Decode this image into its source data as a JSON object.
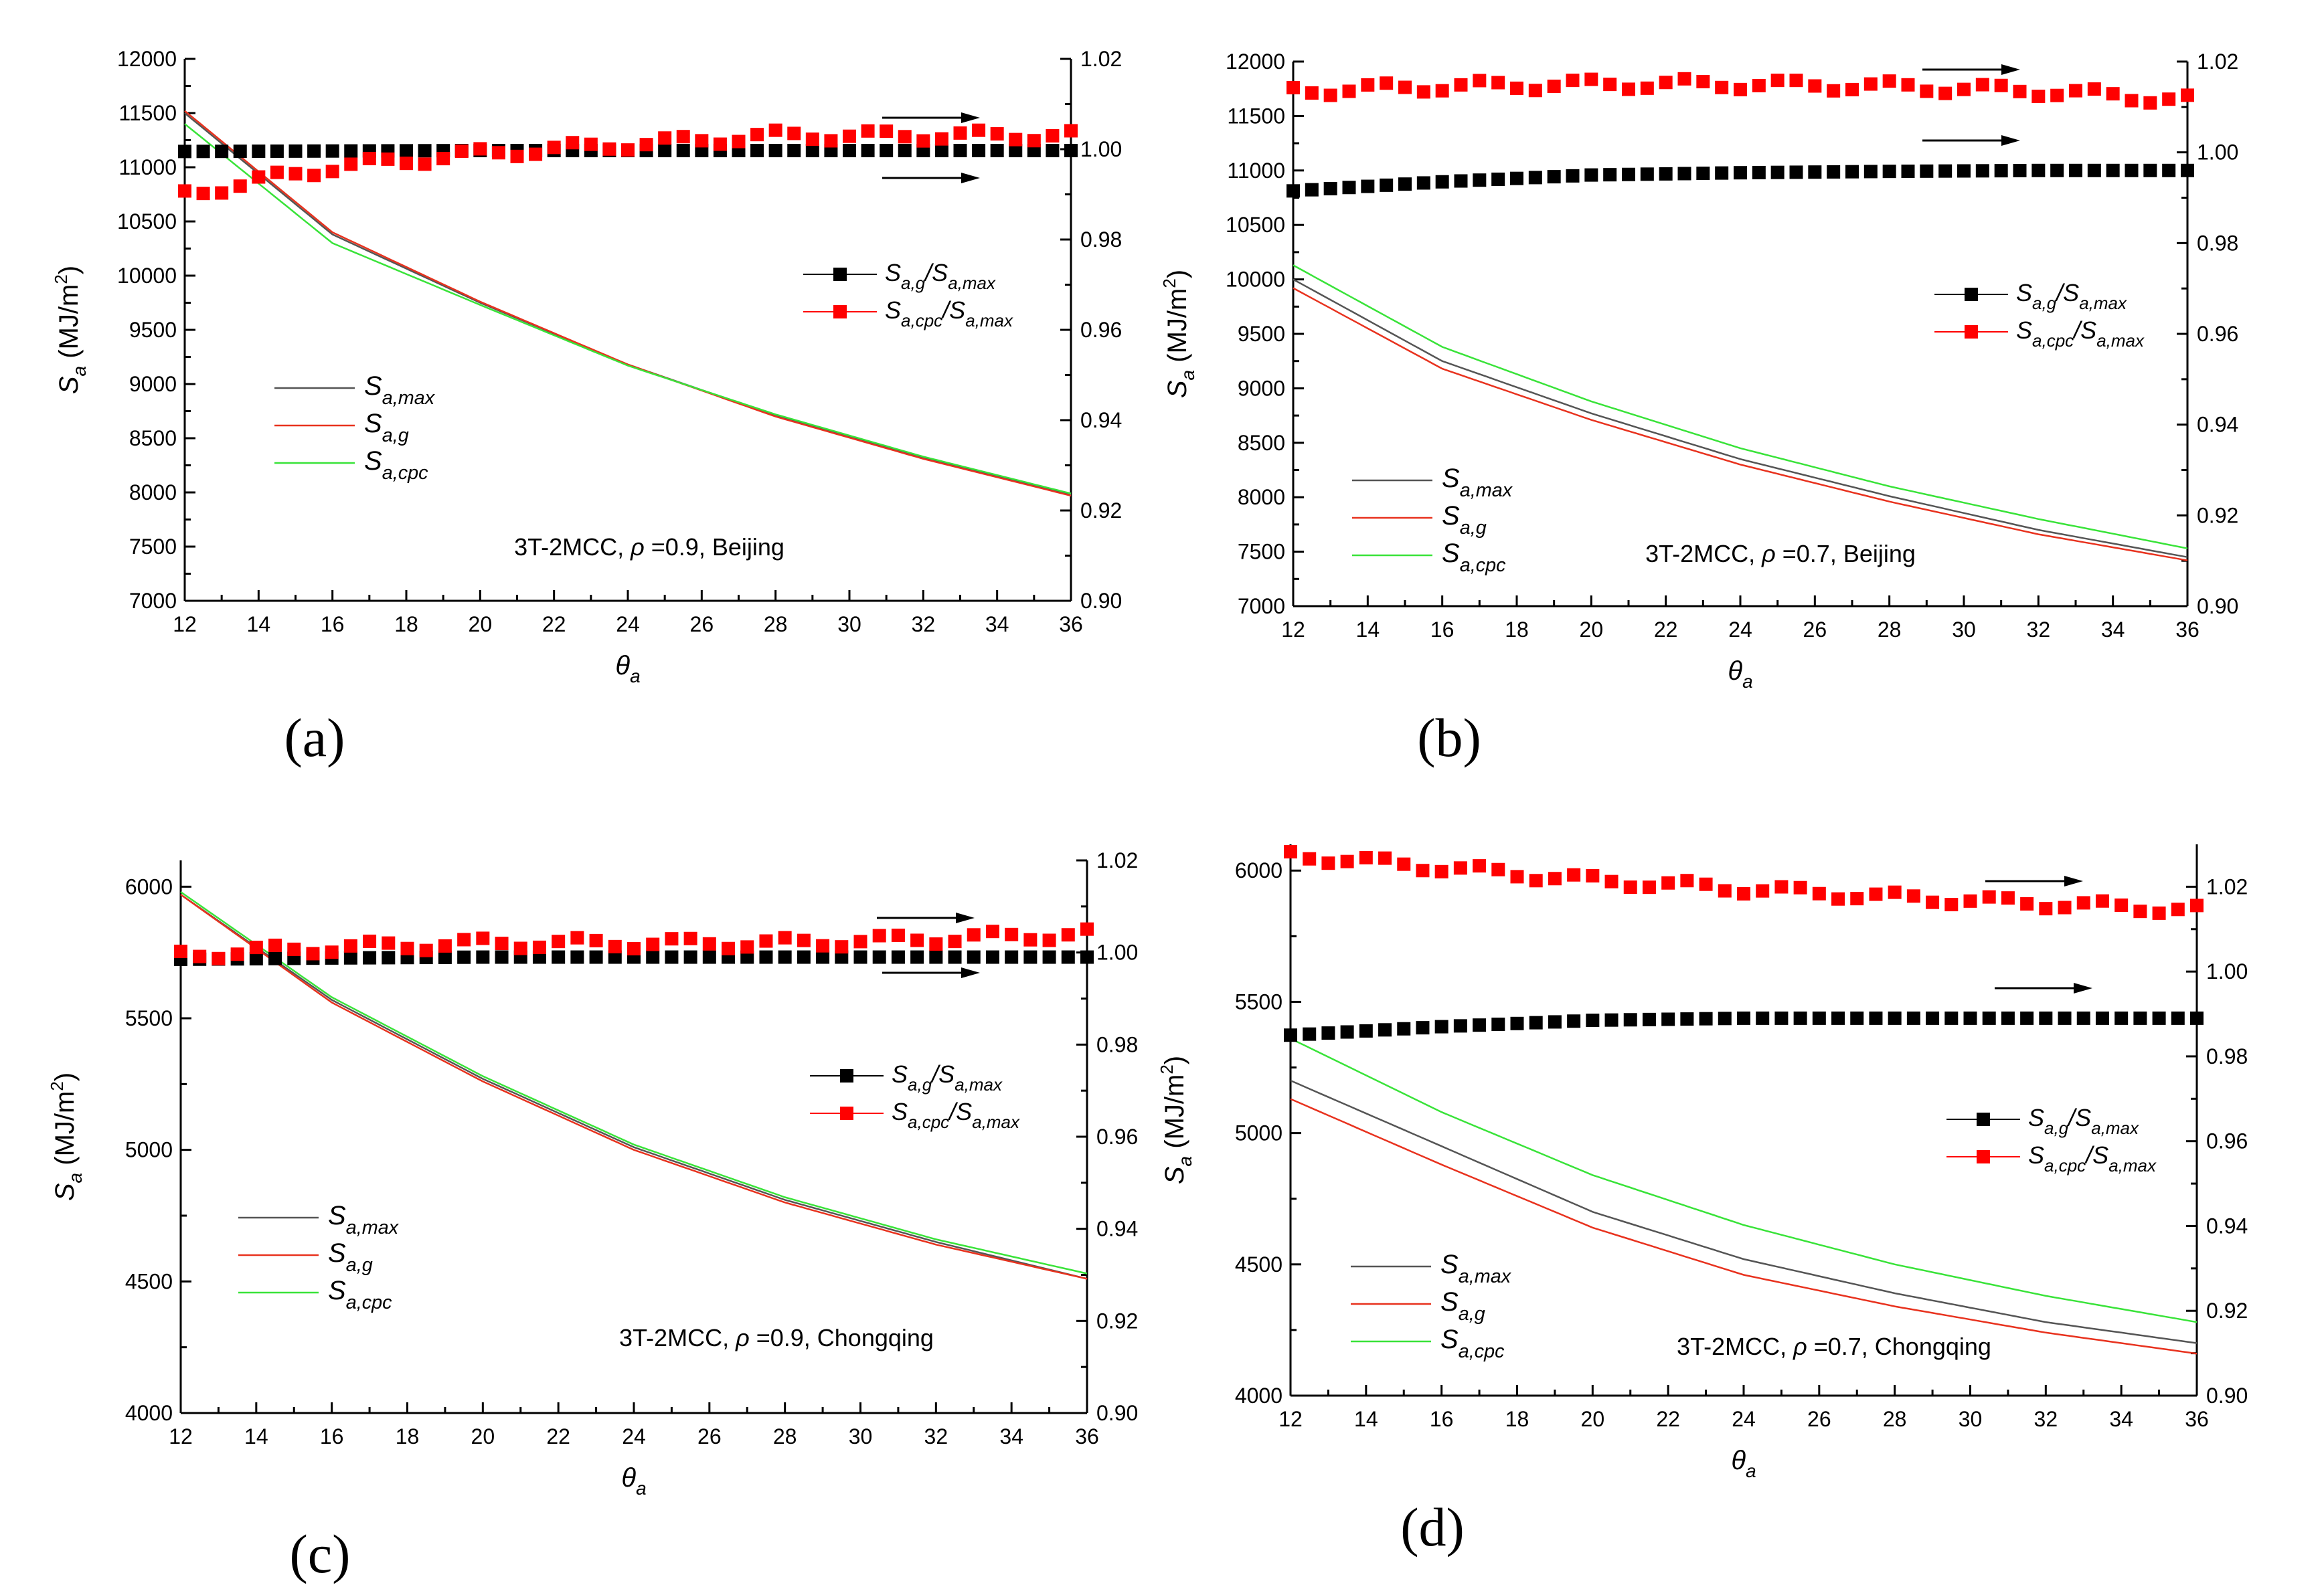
{
  "colors": {
    "series_max": "#555555",
    "series_g": "#e8321e",
    "series_cpc": "#39e339",
    "ratio_g": "#000000",
    "ratio_cpc": "#ff0000"
  },
  "chart_data": [
    {
      "type": "line",
      "panel_label": "(a)",
      "annotation": "3T-2MCC, ρ =0.9, Beijing",
      "xlabel": "θa",
      "ylabel": "Sa (MJ/m2)",
      "ylabel_right": "",
      "xlim": [
        12,
        36
      ],
      "ylim": [
        7000,
        12000
      ],
      "ylim_right": [
        0.9,
        1.02
      ],
      "xticks": [
        "12",
        "14",
        "16",
        "18",
        "20",
        "22",
        "24",
        "26",
        "28",
        "30",
        "32",
        "34",
        "36"
      ],
      "yticks": [
        "7000",
        "7500",
        "8000",
        "8500",
        "9000",
        "9500",
        "10000",
        "10500",
        "11000",
        "11500",
        "12000"
      ],
      "yticks_right": [
        "0.90",
        "0.92",
        "0.94",
        "0.96",
        "0.98",
        "1.00",
        "1.02"
      ],
      "legend_lines": [
        {
          "base": "S",
          "sub": "a,max"
        },
        {
          "base": "S",
          "sub": "a,g"
        },
        {
          "base": "S",
          "sub": "a,cpc"
        }
      ],
      "legend_ratios": [
        {
          "base": "S",
          "sub": "a,g",
          "base2": "S",
          "sub2": "a,max"
        },
        {
          "base": "S",
          "sub": "a,cpc",
          "base2": "S",
          "sub2": "a,max"
        }
      ],
      "x": [
        12,
        16,
        20,
        24,
        28,
        32,
        36
      ],
      "series": [
        {
          "name": "Sa,max",
          "axis": "left",
          "values": [
            11500,
            10380,
            9750,
            9180,
            8710,
            8320,
            7980
          ]
        },
        {
          "name": "Sa,g",
          "axis": "left",
          "values": [
            11520,
            10400,
            9760,
            9180,
            8700,
            8310,
            7970
          ]
        },
        {
          "name": "Sa,cpc",
          "axis": "left",
          "values": [
            11400,
            10300,
            9730,
            9170,
            8720,
            8330,
            7990
          ]
        },
        {
          "name": "Sa,g/Sa,max",
          "axis": "right",
          "values": [
            0.9995,
            0.9996,
            0.9997,
            0.9997,
            0.9997,
            0.9997,
            0.9997
          ]
        },
        {
          "name": "Sa,cpc/Sa,max",
          "axis": "right",
          "values": [
            0.99,
            0.996,
            0.999,
            1.001,
            1.003,
            1.003,
            1.003
          ]
        }
      ]
    },
    {
      "type": "line",
      "panel_label": "(b)",
      "annotation": "3T-2MCC, ρ =0.7, Beijing",
      "xlabel": "θa",
      "ylabel": "Sa (MJ/m2)",
      "ylabel_right": "",
      "xlim": [
        12,
        36
      ],
      "ylim": [
        7000,
        12000
      ],
      "ylim_right": [
        0.9,
        1.02
      ],
      "xticks": [
        "12",
        "14",
        "16",
        "18",
        "20",
        "22",
        "24",
        "26",
        "28",
        "30",
        "32",
        "34",
        "36"
      ],
      "yticks": [
        "7000",
        "7500",
        "8000",
        "8500",
        "9000",
        "9500",
        "10000",
        "10500",
        "11000",
        "11500",
        "12000"
      ],
      "yticks_right": [
        "0.90",
        "0.92",
        "0.94",
        "0.96",
        "0.98",
        "1.00",
        "1.02"
      ],
      "legend_lines": [
        {
          "base": "S",
          "sub": "a,max"
        },
        {
          "base": "S",
          "sub": "a,g"
        },
        {
          "base": "S",
          "sub": "a,cpc"
        }
      ],
      "legend_ratios": [
        {
          "base": "S",
          "sub": "a,g",
          "base2": "S",
          "sub2": "a,max"
        },
        {
          "base": "S",
          "sub": "a,cpc",
          "base2": "S",
          "sub2": "a,max"
        }
      ],
      "x": [
        12,
        16,
        20,
        24,
        28,
        32,
        36
      ],
      "series": [
        {
          "name": "Sa,max",
          "axis": "left",
          "values": [
            10000,
            9250,
            8770,
            8350,
            8010,
            7700,
            7450
          ]
        },
        {
          "name": "Sa,g",
          "axis": "left",
          "values": [
            9920,
            9180,
            8710,
            8300,
            7960,
            7660,
            7420
          ]
        },
        {
          "name": "Sa,cpc",
          "axis": "left",
          "values": [
            10130,
            9380,
            8880,
            8450,
            8100,
            7800,
            7530
          ]
        },
        {
          "name": "Sa,g/Sa,max",
          "axis": "right",
          "values": [
            0.9915,
            0.9935,
            0.995,
            0.9955,
            0.9958,
            0.996,
            0.996
          ]
        },
        {
          "name": "Sa,cpc/Sa,max",
          "axis": "right",
          "values": [
            1.0135,
            1.0145,
            1.015,
            1.015,
            1.0145,
            1.0135,
            1.0115
          ]
        }
      ]
    },
    {
      "type": "line",
      "panel_label": "(c)",
      "annotation": "3T-2MCC, ρ =0.9, Chongqing",
      "xlabel": "θa",
      "ylabel": "Sa (MJ/m2)",
      "ylabel_right": "",
      "xlim": [
        12,
        36
      ],
      "ylim": [
        4000,
        6100
      ],
      "ylim_right": [
        0.9,
        1.02
      ],
      "xticks": [
        "12",
        "14",
        "16",
        "18",
        "20",
        "22",
        "24",
        "26",
        "28",
        "30",
        "32",
        "34",
        "36"
      ],
      "yticks": [
        "4000",
        "4500",
        "5000",
        "5500",
        "6000"
      ],
      "yticks_right": [
        "0.90",
        "0.92",
        "0.94",
        "0.96",
        "0.98",
        "1.00",
        "1.02"
      ],
      "legend_lines": [
        {
          "base": "S",
          "sub": "a,max"
        },
        {
          "base": "S",
          "sub": "a,g"
        },
        {
          "base": "S",
          "sub": "a,cpc"
        }
      ],
      "legend_ratios": [
        {
          "base": "S",
          "sub": "a,g",
          "base2": "S",
          "sub2": "a,max"
        },
        {
          "base": "S",
          "sub": "a,cpc",
          "base2": "S",
          "sub2": "a,max"
        }
      ],
      "x": [
        12,
        16,
        20,
        24,
        28,
        32,
        36
      ],
      "series": [
        {
          "name": "Sa,max",
          "axis": "left",
          "values": [
            5970,
            5570,
            5270,
            5010,
            4810,
            4650,
            4510
          ]
        },
        {
          "name": "Sa,g",
          "axis": "left",
          "values": [
            5970,
            5560,
            5260,
            5000,
            4800,
            4640,
            4510
          ]
        },
        {
          "name": "Sa,cpc",
          "axis": "left",
          "values": [
            5980,
            5580,
            5280,
            5020,
            4820,
            4660,
            4530
          ]
        },
        {
          "name": "Sa,g/Sa,max",
          "axis": "right",
          "values": [
            0.9985,
            0.9988,
            0.999,
            0.999,
            0.999,
            0.999,
            0.999
          ]
        },
        {
          "name": "Sa,cpc/Sa,max",
          "axis": "right",
          "values": [
            0.9995,
            1.001,
            1.002,
            1.002,
            1.002,
            1.003,
            1.004
          ]
        }
      ]
    },
    {
      "type": "line",
      "panel_label": "(d)",
      "annotation": "3T-2MCC, ρ =0.7, Chongqing",
      "xlabel": "θa",
      "ylabel": "Sa (MJ/m2)",
      "ylabel_right": "",
      "xlim": [
        12,
        36
      ],
      "ylim": [
        4000,
        6100
      ],
      "ylim_right": [
        0.9,
        1.03
      ],
      "xticks": [
        "12",
        "14",
        "16",
        "18",
        "20",
        "22",
        "24",
        "26",
        "28",
        "30",
        "32",
        "34",
        "36"
      ],
      "yticks": [
        "4000",
        "4500",
        "5000",
        "5500",
        "6000"
      ],
      "yticks_right": [
        "0.90",
        "0.92",
        "0.94",
        "0.96",
        "0.98",
        "1.00",
        "1.02"
      ],
      "legend_lines": [
        {
          "base": "S",
          "sub": "a,max"
        },
        {
          "base": "S",
          "sub": "a,g"
        },
        {
          "base": "S",
          "sub": "a,cpc"
        }
      ],
      "legend_ratios": [
        {
          "base": "S",
          "sub": "a,g",
          "base2": "S",
          "sub2": "a,max"
        },
        {
          "base": "S",
          "sub": "a,cpc",
          "base2": "S",
          "sub2": "a,max"
        }
      ],
      "x": [
        12,
        16,
        20,
        24,
        28,
        32,
        36
      ],
      "series": [
        {
          "name": "Sa,max",
          "axis": "left",
          "values": [
            5200,
            4950,
            4700,
            4520,
            4390,
            4280,
            4200
          ]
        },
        {
          "name": "Sa,g",
          "axis": "left",
          "values": [
            5130,
            4880,
            4640,
            4460,
            4340,
            4240,
            4160
          ]
        },
        {
          "name": "Sa,cpc",
          "axis": "left",
          "values": [
            5360,
            5080,
            4840,
            4650,
            4500,
            4380,
            4280
          ]
        },
        {
          "name": "Sa,g/Sa,max",
          "axis": "right",
          "values": [
            0.985,
            0.987,
            0.9885,
            0.989,
            0.989,
            0.989,
            0.989
          ]
        },
        {
          "name": "Sa,cpc/Sa,max",
          "axis": "right",
          "values": [
            1.0275,
            1.0245,
            1.0215,
            1.0195,
            1.0175,
            1.016,
            1.0145
          ]
        }
      ]
    }
  ]
}
